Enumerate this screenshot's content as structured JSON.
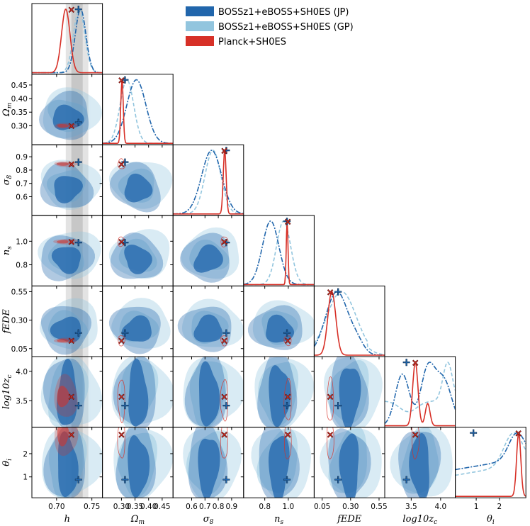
{
  "chart_data": {
    "type": "triangle-corner",
    "title": "",
    "parameters": [
      {
        "key": "h",
        "label": "h",
        "range": [
          0.665,
          0.765
        ],
        "ticks": [
          0.7,
          0.75
        ],
        "tick_labels": [
          "0.70",
          "0.75"
        ]
      },
      {
        "key": "om",
        "label": "Ω_m",
        "range": [
          0.23,
          0.49
        ],
        "ticks": [
          0.3,
          0.35,
          0.4,
          0.45
        ],
        "tick_labels": [
          "0.30",
          "0.35",
          "0.40",
          "0.45"
        ]
      },
      {
        "key": "s8",
        "label": "σ_8",
        "range": [
          0.46,
          0.99
        ],
        "ticks": [
          0.6,
          0.7,
          0.8,
          0.9
        ],
        "tick_labels": [
          "0.6",
          "0.7",
          "0.8",
          "0.9"
        ]
      },
      {
        "key": "ns",
        "label": "n_s",
        "range": [
          0.62,
          1.22
        ],
        "ticks": [
          0.8,
          1.0
        ],
        "tick_labels": [
          "0.8",
          "1.0"
        ]
      },
      {
        "key": "fede",
        "label": "fEDE",
        "range": [
          -0.02,
          0.6
        ],
        "ticks": [
          0.05,
          0.3,
          0.55
        ],
        "tick_labels": [
          "0.05",
          "0.30",
          "0.55"
        ]
      },
      {
        "key": "lz",
        "label": "log10z_c",
        "range": [
          3.05,
          4.25
        ],
        "ticks": [
          3.5,
          4.0
        ],
        "tick_labels": [
          "3.5",
          "4.0"
        ]
      },
      {
        "key": "th",
        "label": "θ_i",
        "range": [
          0.1,
          3.14
        ],
        "ticks": [
          1,
          2
        ],
        "tick_labels": [
          "1",
          "2"
        ]
      }
    ],
    "series": [
      {
        "name": "BOSSz1+eBOSS+SH0ES (JP)",
        "color": "#2166ac",
        "line_style": "dashdot",
        "best_fit": {
          "h": 0.731,
          "om": 0.313,
          "s8": 0.86,
          "ns": 0.989,
          "fede": 0.19,
          "lz": 3.42,
          "th": 0.88
        }
      },
      {
        "name": "BOSSz1+eBOSS+SH0ES (GP)",
        "color": "#92c5de",
        "line_style": "dashed",
        "best_fit": null
      },
      {
        "name": "Planck+SH0ES",
        "color": "#d73027",
        "line_style": "solid",
        "best_fit": {
          "h": 0.721,
          "om": 0.3,
          "s8": 0.845,
          "ns": 0.996,
          "fede": 0.121,
          "lz": 3.57,
          "th": 2.82
        }
      }
    ],
    "reference_band": {
      "parameter": "h",
      "inner": [
        0.721,
        0.737
      ],
      "outer": [
        0.713,
        0.745
      ]
    },
    "legend": {
      "placement": "top-right"
    }
  }
}
